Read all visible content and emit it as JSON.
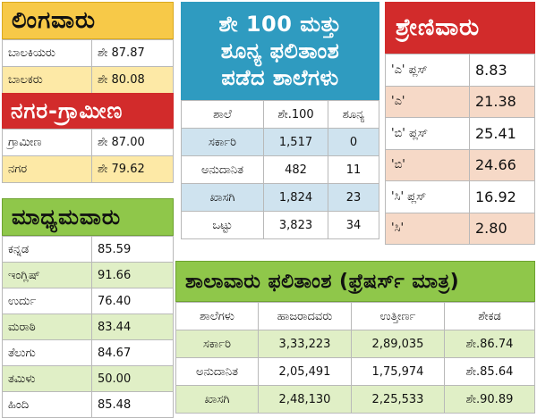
{
  "gender": {
    "title": "ಲಿಂಗವಾರು",
    "rows": [
      {
        "label": "ಬಾಲಕಿಯರು",
        "value": "ಶೇ 87.87"
      },
      {
        "label": "ಬಾಲಕರು",
        "value": "ಶೇ 80.08"
      }
    ]
  },
  "area": {
    "title": "ನಗರ-ಗ್ರಾಮೀಣ",
    "rows": [
      {
        "label": "ಗ್ರಾಮೀಣ",
        "value": "ಶೇ 87.00"
      },
      {
        "label": "ನಗರ",
        "value": "ಶೇ 79.62"
      }
    ]
  },
  "medium": {
    "title": "ಮಾಧ್ಯಮವಾರು",
    "rows": [
      {
        "label": "ಕನ್ನಡ",
        "value": "85.59"
      },
      {
        "label": "ಇಂಗ್ಲಿಷ್",
        "value": "91.66"
      },
      {
        "label": "ಉರ್ದು",
        "value": "76.40"
      },
      {
        "label": "ಮರಾಠಿ",
        "value": "83.44"
      },
      {
        "label": "ತೆಲುಗು",
        "value": "84.67"
      },
      {
        "label": "ತಮಿಳು",
        "value": "50.00"
      },
      {
        "label": "ಹಿಂದಿ",
        "value": "85.48"
      }
    ]
  },
  "zero": {
    "title_line1": "ಶೇ 100 ಮತ್ತು",
    "title_line2": "ಶೂನ್ಯ ಫಲಿತಾಂಶ",
    "title_line3": "ಪಡೆದ ಶಾಲೆಗಳು",
    "columns": [
      "ಶಾಲೆ",
      "ಶೇ.100",
      "ಶೂನ್ಯ"
    ],
    "rows": [
      {
        "school": "ಸರ್ಕಾರಿ",
        "hundred": "1,517",
        "zero": "0"
      },
      {
        "school": "ಅನುದಾನಿತ",
        "hundred": "482",
        "zero": "11"
      },
      {
        "school": "ಖಾಸಗಿ",
        "hundred": "1,824",
        "zero": "23"
      },
      {
        "school": "ಒಟ್ಟು",
        "hundred": "3,823",
        "zero": "34"
      }
    ]
  },
  "grade": {
    "title": "ಶ್ರೇಣಿವಾರು",
    "rows": [
      {
        "label": "'ಎ' ಪ್ಲಸ್",
        "value": "8.83"
      },
      {
        "label": "'ಎ'",
        "value": "21.38"
      },
      {
        "label": "'ಬಿ' ಪ್ಲಸ್",
        "value": "25.41"
      },
      {
        "label": "'ಬಿ'",
        "value": "24.66"
      },
      {
        "label": "'ಸಿ' ಪ್ಲಸ್",
        "value": "16.92"
      },
      {
        "label": "'ಸಿ'",
        "value": "2.80"
      }
    ]
  },
  "school": {
    "title": "ಶಾಲಾವಾರು ಫಲಿತಾಂಶ (ಫ್ರೆಷರ್ಸ್ ಮಾತ್ರ)",
    "columns": [
      "ಶಾಲೆಗಳು",
      "ಹಾಜರಾದವರು",
      "ಉತ್ತೀರ್ಣ",
      "ಶೇಕಡ"
    ],
    "rows": [
      {
        "school": "ಸರ್ಕಾರಿ",
        "appeared": "3,33,223",
        "passed": "2,89,035",
        "percent": "ಶೇ.86.74"
      },
      {
        "school": "ಅನುದಾನಿತ",
        "appeared": "2,05,491",
        "passed": "1,75,974",
        "percent": "ಶೇ.85.64"
      },
      {
        "school": "ಖಾಸಗಿ",
        "appeared": "2,48,130",
        "passed": "2,25,533",
        "percent": "ಶೇ.90.89"
      }
    ]
  },
  "colors": {
    "yellow": "#f7c948",
    "red": "#d22b2b",
    "green": "#8fc74a",
    "blue": "#2f9bc0"
  }
}
